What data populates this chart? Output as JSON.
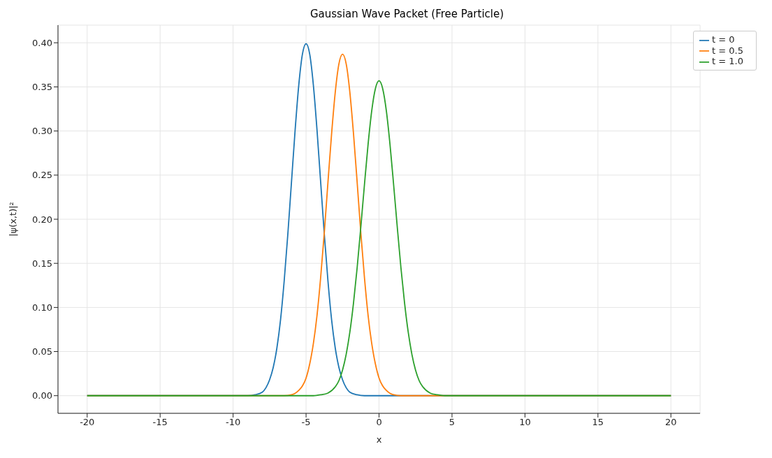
{
  "chart_data": {
    "type": "line",
    "title": "Gaussian Wave Packet (Free Particle)",
    "xlabel": "x",
    "ylabel": "|ψ(x,t)|²",
    "xlim": [
      -22,
      22
    ],
    "xticks": [
      -20,
      -15,
      -10,
      -5,
      0,
      5,
      10,
      15,
      20
    ],
    "ylim": [
      -0.02,
      0.42
    ],
    "yticks": [
      {
        "value": 0,
        "label": "0.00"
      },
      {
        "value": 0.05,
        "label": "0.05"
      },
      {
        "value": 0.1,
        "label": "0.10"
      },
      {
        "value": 0.15,
        "label": "0.15"
      },
      {
        "value": 0.2,
        "label": "0.20"
      },
      {
        "value": 0.25,
        "label": "0.25"
      },
      {
        "value": 0.3,
        "label": "0.30"
      },
      {
        "value": 0.35,
        "label": "0.35"
      },
      {
        "value": 0.4,
        "label": "0.40"
      }
    ],
    "grid": true,
    "legend": "top right",
    "marker": "none",
    "line_style": "solid",
    "series": [
      {
        "name": "t = 0",
        "color": "#1f77b4",
        "x": [
          -20,
          -9,
          -8.5,
          -8,
          -7.75,
          -7.5,
          -7.25,
          -7,
          -6.75,
          -6.5,
          -6.25,
          -6,
          -5.75,
          -5.5,
          -5.25,
          -5,
          -4.75,
          -4.5,
          -4.25,
          -4,
          -3.75,
          -3.5,
          -3.25,
          -3,
          -2.75,
          -2.5,
          -2.25,
          -2,
          -1.5,
          -1,
          20
        ],
        "values": [
          0,
          0,
          0.001,
          0.004,
          0.009,
          0.018,
          0.032,
          0.054,
          0.086,
          0.13,
          0.183,
          0.242,
          0.301,
          0.352,
          0.387,
          0.399,
          0.387,
          0.352,
          0.301,
          0.242,
          0.183,
          0.13,
          0.086,
          0.054,
          0.032,
          0.018,
          0.009,
          0.004,
          0.001,
          0,
          0
        ]
      },
      {
        "name": "t = 0.5",
        "color": "#ff7f0e",
        "x": [
          -20,
          -6.5,
          -6,
          -5.5,
          -5.25,
          -5,
          -4.75,
          -4.5,
          -4.25,
          -4,
          -3.75,
          -3.5,
          -3.25,
          -3,
          -2.75,
          -2.5,
          -2.25,
          -2,
          -1.75,
          -1.5,
          -1.25,
          -1,
          -0.75,
          -0.5,
          -0.25,
          0,
          0.25,
          0.5,
          1,
          1.5,
          20
        ],
        "values": [
          0,
          0,
          0.001,
          0.006,
          0.011,
          0.02,
          0.036,
          0.059,
          0.091,
          0.134,
          0.185,
          0.242,
          0.297,
          0.344,
          0.376,
          0.387,
          0.376,
          0.344,
          0.297,
          0.242,
          0.185,
          0.134,
          0.091,
          0.059,
          0.036,
          0.02,
          0.011,
          0.006,
          0.001,
          0,
          0
        ]
      },
      {
        "name": "t = 1.0",
        "color": "#2ca02c",
        "x": [
          -20,
          -4.5,
          -4,
          -3.5,
          -3,
          -2.75,
          -2.5,
          -2.25,
          -2,
          -1.75,
          -1.5,
          -1.25,
          -1,
          -0.75,
          -0.5,
          -0.25,
          0,
          0.25,
          0.5,
          0.75,
          1,
          1.25,
          1.5,
          1.75,
          2,
          2.25,
          2.5,
          2.75,
          3,
          3.5,
          4,
          4.5,
          20
        ],
        "values": [
          0,
          0,
          0.001,
          0.003,
          0.01,
          0.017,
          0.029,
          0.047,
          0.072,
          0.105,
          0.145,
          0.191,
          0.239,
          0.285,
          0.323,
          0.348,
          0.357,
          0.348,
          0.323,
          0.285,
          0.239,
          0.191,
          0.145,
          0.105,
          0.072,
          0.047,
          0.029,
          0.017,
          0.01,
          0.003,
          0.001,
          0,
          0
        ]
      }
    ]
  }
}
